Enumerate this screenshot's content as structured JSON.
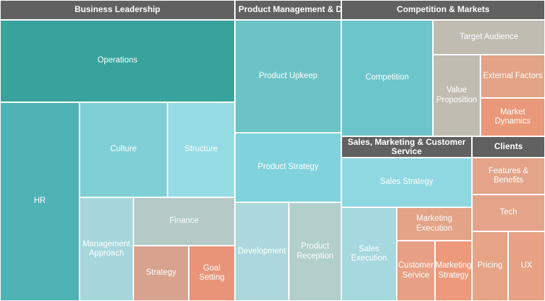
{
  "chart_data": {
    "type": "treemap",
    "groups": [
      {
        "name": "Business Leadership",
        "children": [
          {
            "name": "Operations",
            "color": "#38a39d"
          },
          {
            "name": "HR",
            "color": "#4fb3b5"
          },
          {
            "name": "Culture",
            "color": "#7fd0d6"
          },
          {
            "name": "Structure",
            "color": "#96dce5"
          },
          {
            "name": "Management Approach",
            "color": "#a6d6dc"
          },
          {
            "name": "Finance",
            "color": "#b3cac7"
          },
          {
            "name": "Strategy",
            "color": "#d7a28e"
          },
          {
            "name": "Goal Setting",
            "color": "#e99479"
          }
        ]
      },
      {
        "name": "Product Management & Dev",
        "children": [
          {
            "name": "Product Upkeep",
            "color": "#6cc3c6"
          },
          {
            "name": "Product Strategy",
            "color": "#80d3dc"
          },
          {
            "name": "Development",
            "color": "#acd8dd"
          },
          {
            "name": "Product Reception",
            "color": "#b2cfcc"
          }
        ]
      },
      {
        "name": "Competition & Markets",
        "children": [
          {
            "name": "Competition",
            "color": "#6cc5cb"
          },
          {
            "name": "Target Audience",
            "color": "#c0bcb2"
          },
          {
            "name": "Value Proposition",
            "color": "#c0bcb2"
          },
          {
            "name": "External Factors",
            "color": "#e2a386"
          },
          {
            "name": "Market Dynamics",
            "color": "#e99879"
          }
        ]
      },
      {
        "name": "Sales, Marketing & Customer Service",
        "children": [
          {
            "name": "Sales Strategy",
            "color": "#8fd8e1"
          },
          {
            "name": "Sales Execution",
            "color": "#a6d8df"
          },
          {
            "name": "Marketing Execution",
            "color": "#e3a387"
          },
          {
            "name": "Customer Service",
            "color": "#e7a084"
          },
          {
            "name": "Marketing Strategy",
            "color": "#ec9a7b"
          }
        ]
      },
      {
        "name": "Clients",
        "children": [
          {
            "name": "Features & Benefits",
            "color": "#e4a489"
          },
          {
            "name": "Tech",
            "color": "#e4a489"
          },
          {
            "name": "Pricing",
            "color": "#e6a386"
          },
          {
            "name": "UX",
            "color": "#e8a185"
          }
        ]
      }
    ]
  }
}
